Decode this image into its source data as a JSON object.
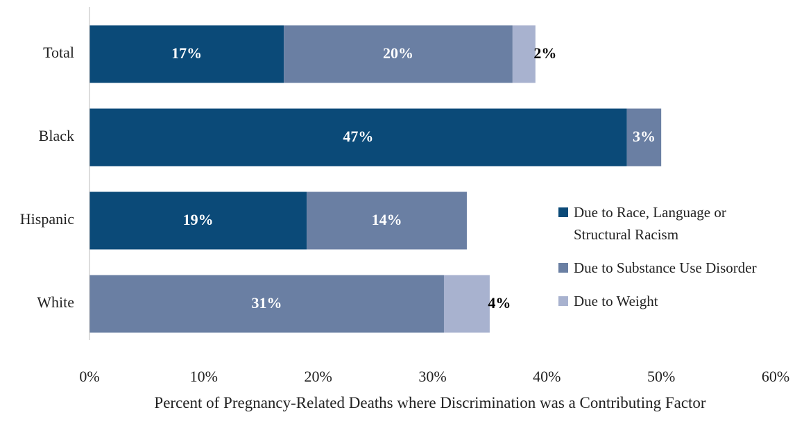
{
  "chart_data": {
    "type": "stacked_barh",
    "categories": [
      "Total",
      "Black",
      "Hispanic",
      "White"
    ],
    "series": [
      {
        "name": "Due to Race, Language or Structural Racism",
        "color": "#0b4a78",
        "values": [
          17,
          47,
          19,
          null
        ],
        "value_labels": [
          "17%",
          "47%",
          "19%",
          null
        ]
      },
      {
        "name": "Due to Substance Use Disorder",
        "color": "#6a7fa3",
        "values": [
          20,
          3,
          14,
          31
        ],
        "value_labels": [
          "20%",
          "3%",
          "14%",
          "31%"
        ]
      },
      {
        "name": "Due to Weight",
        "color": "#a8b2cf",
        "values": [
          2,
          null,
          null,
          4
        ],
        "value_labels": [
          "2%",
          null,
          null,
          "4%"
        ]
      }
    ],
    "xlim": [
      0,
      60
    ],
    "xticks": [
      {
        "value": 0,
        "label": "0%"
      },
      {
        "value": 10,
        "label": "10%"
      },
      {
        "value": 20,
        "label": "20%"
      },
      {
        "value": 30,
        "label": "30%"
      },
      {
        "value": 40,
        "label": "40%"
      },
      {
        "value": 50,
        "label": "50%"
      },
      {
        "value": 60,
        "label": "60%"
      }
    ],
    "xlabel": "Percent of Pregnancy-Related Deaths where Discrimination was a Contributing Factor",
    "legend": "right"
  }
}
